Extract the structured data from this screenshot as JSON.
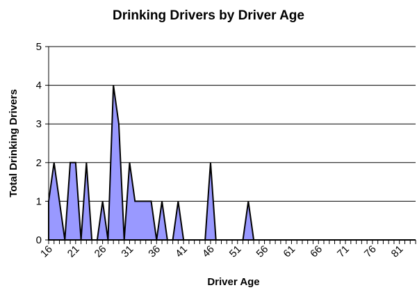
{
  "chart_data": {
    "type": "area",
    "title": "Drinking Drivers by Driver Age",
    "x_label": "Driver Age",
    "y_label": "Total Drinking Drivers",
    "categories": [
      "16",
      null,
      null,
      null,
      null,
      "21",
      null,
      null,
      null,
      null,
      "26",
      null,
      null,
      null,
      null,
      "31",
      null,
      null,
      null,
      null,
      "36",
      null,
      null,
      null,
      null,
      "41",
      null,
      null,
      null,
      null,
      "46",
      null,
      null,
      null,
      null,
      "51",
      null,
      null,
      null,
      null,
      "56",
      null,
      null,
      null,
      null,
      "61",
      null,
      null,
      null,
      null,
      "66",
      null,
      null,
      null,
      null,
      "71",
      null,
      null,
      null,
      null,
      "76",
      null,
      null,
      null,
      null,
      "81",
      null,
      null,
      null
    ],
    "values": [
      1,
      2,
      1,
      0,
      2,
      2,
      0,
      2,
      0,
      0,
      1,
      0,
      4,
      3,
      0,
      2,
      1,
      1,
      1,
      1,
      0,
      1,
      0,
      0,
      1,
      0,
      0,
      0,
      0,
      0,
      2,
      0,
      0,
      0,
      0,
      0,
      0,
      1,
      0,
      0,
      0,
      0,
      0,
      0,
      0,
      0,
      0,
      0,
      0,
      0,
      0,
      0,
      0,
      0,
      0,
      0,
      0,
      0,
      0,
      0,
      0,
      0,
      0,
      0,
      0,
      0,
      0,
      0,
      0
    ],
    "color": "#9999ff",
    "ylim": [
      0,
      5
    ],
    "yticks": [
      0,
      1,
      2,
      3,
      4,
      5
    ],
    "grid": true
  }
}
